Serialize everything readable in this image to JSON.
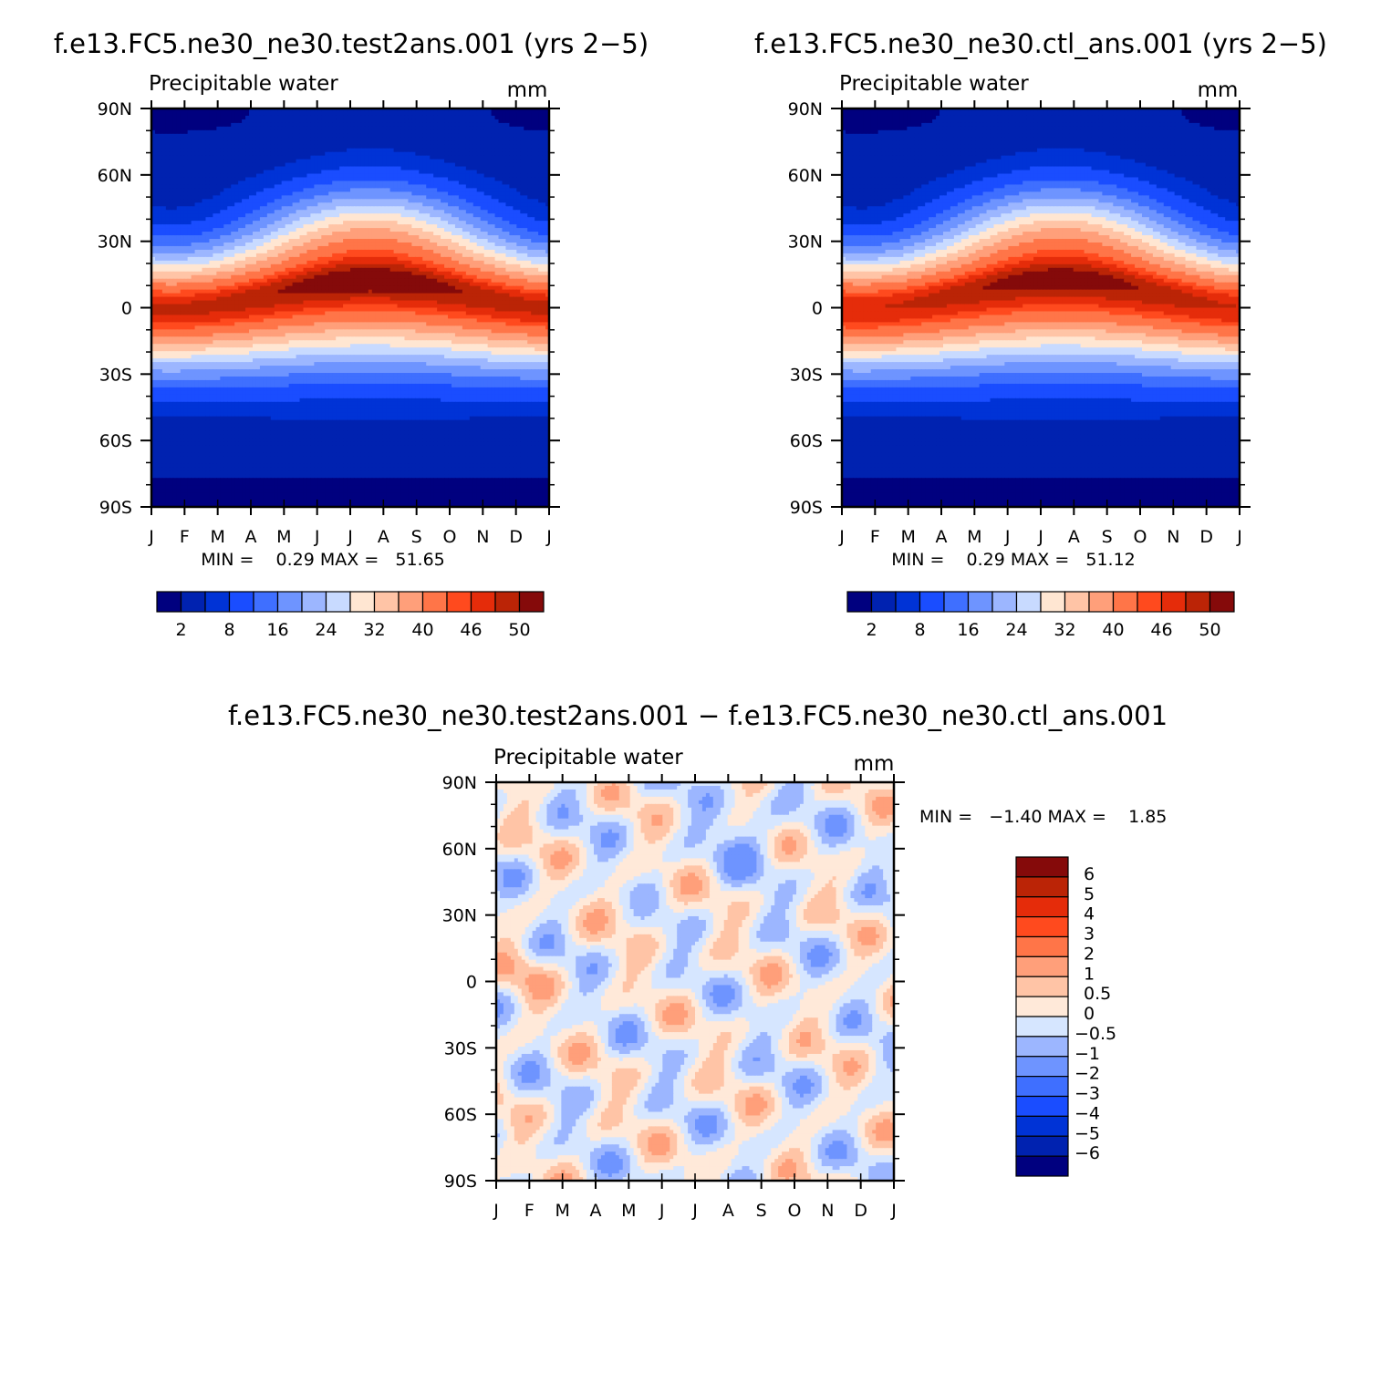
{
  "months": [
    "J",
    "F",
    "M",
    "A",
    "M",
    "J",
    "J",
    "A",
    "S",
    "O",
    "N",
    "D",
    "J"
  ],
  "lat_labels": [
    "90N",
    "60N",
    "30N",
    "0",
    "30S",
    "60S",
    "90S"
  ],
  "palette_main": [
    "#00007f",
    "#0022b0",
    "#0033d6",
    "#1a4dff",
    "#3f6fff",
    "#6e94ff",
    "#9cb6ff",
    "#c8daff",
    "#ffe6d2",
    "#ffc4a6",
    "#ff9f7a",
    "#ff7548",
    "#ff4a1e",
    "#e52c0a",
    "#bb2406",
    "#850a0a"
  ],
  "palette_diff": [
    "#00007f",
    "#0022b0",
    "#0033d6",
    "#1a4dff",
    "#3f6fff",
    "#6e94ff",
    "#9cb6ff",
    "#d6e6ff",
    "#ffe9d9",
    "#ffc4a6",
    "#ff9f7a",
    "#ff7548",
    "#ff4a1e",
    "#e52c0a",
    "#bb2406",
    "#850a0a"
  ],
  "panels": [
    {
      "title": "f.e13.FC5.ne30_ne30.test2ans.001 (yrs 2−5)",
      "variable": "Precipitable water",
      "units": "mm",
      "stats": "MIN =    0.29 MAX =   51.65",
      "colorbar_labels": [
        "2",
        "8",
        "16",
        "24",
        "32",
        "40",
        "46",
        "50"
      ]
    },
    {
      "title": "f.e13.FC5.ne30_ne30.ctl_ans.001 (yrs 2−5)",
      "variable": "Precipitable water",
      "units": "mm",
      "stats": "MIN =    0.29 MAX =   51.12",
      "colorbar_labels": [
        "2",
        "8",
        "16",
        "24",
        "32",
        "40",
        "46",
        "50"
      ]
    }
  ],
  "diff_panel": {
    "title": "f.e13.FC5.ne30_ne30.test2ans.001 − f.e13.FC5.ne30_ne30.ctl_ans.001",
    "variable": "Precipitable water",
    "units": "mm",
    "stats": "MIN =   −1.40 MAX =    1.85",
    "colorbar_labels": [
      "6",
      "5",
      "4",
      "3",
      "2",
      "1",
      "0.5",
      "0",
      "−0.5",
      "−1",
      "−2",
      "−3",
      "−4",
      "−5",
      "−6"
    ]
  },
  "chart_data": [
    {
      "type": "heatmap",
      "title": "f.e13.FC5.ne30_ne30.test2ans.001 (yrs 2−5)",
      "subtitle": "Precipitable water",
      "units": "mm",
      "x": [
        "J",
        "F",
        "M",
        "A",
        "M",
        "J",
        "J",
        "A",
        "S",
        "O",
        "N",
        "D",
        "J"
      ],
      "y": [
        "90N",
        "60N",
        "30N",
        "0",
        "30S",
        "60S",
        "90S"
      ],
      "min": 0.29,
      "max": 51.65,
      "levels": [
        2,
        8,
        16,
        24,
        32,
        40,
        46,
        50
      ]
    },
    {
      "type": "heatmap",
      "title": "f.e13.FC5.ne30_ne30.ctl_ans.001 (yrs 2−5)",
      "subtitle": "Precipitable water",
      "units": "mm",
      "x": [
        "J",
        "F",
        "M",
        "A",
        "M",
        "J",
        "J",
        "A",
        "S",
        "O",
        "N",
        "D",
        "J"
      ],
      "y": [
        "90N",
        "60N",
        "30N",
        "0",
        "30S",
        "60S",
        "90S"
      ],
      "min": 0.29,
      "max": 51.12,
      "levels": [
        2,
        8,
        16,
        24,
        32,
        40,
        46,
        50
      ]
    },
    {
      "type": "heatmap",
      "title": "f.e13.FC5.ne30_ne30.test2ans.001 − f.e13.FC5.ne30_ne30.ctl_ans.001",
      "subtitle": "Precipitable water",
      "units": "mm",
      "x": [
        "J",
        "F",
        "M",
        "A",
        "M",
        "J",
        "J",
        "A",
        "S",
        "O",
        "N",
        "D",
        "J"
      ],
      "y": [
        "90N",
        "60N",
        "30N",
        "0",
        "30S",
        "60S",
        "90S"
      ],
      "min": -1.4,
      "max": 1.85,
      "levels": [
        6,
        5,
        4,
        3,
        2,
        1,
        0.5,
        0,
        -0.5,
        -1,
        -2,
        -3,
        -4,
        -5,
        -6
      ]
    }
  ]
}
